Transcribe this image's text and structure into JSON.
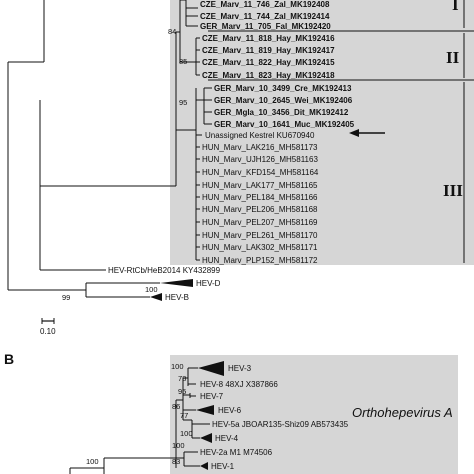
{
  "panel_b": {
    "letter": "B",
    "clade_name": "Orthohepevirus A",
    "leaves": [
      "HEV-3",
      "HEV-8 48XJ X387866",
      "HEV-7",
      "HEV-6",
      "HEV-5a JBOAR135-Shiz09 AB573435",
      "HEV-4",
      "HEV-2a M1 M74506",
      "HEV-1"
    ],
    "bootstrap": [
      "100",
      "78",
      "95",
      "86",
      "77",
      "100",
      "100",
      "83",
      "100"
    ]
  },
  "panel_a": {
    "group_labels": [
      "I",
      "II",
      "III"
    ],
    "scale_label": "0.10",
    "bootstrap": [
      "84",
      "85",
      "95",
      "100",
      "99"
    ],
    "leaves": [
      "CZE_Marv_11_746_Zal_MK192408",
      "CZE_Marv_11_744_Zal_MK192414",
      "GER_Marv_11_705_Fal_MK192420",
      "CZE_Marv_11_818_Hay_MK192416",
      "CZE_Marv_11_819_Hay_MK192417",
      "CZE_Marv_11_822_Hay_MK192415",
      "CZE_Marv_11_823_Hay_MK192418",
      "GER_Marv_10_3499_Cre_MK192413",
      "GER_Marv_10_2645_Wei_MK192406",
      "GER_Mgla_10_3456_Dit_MK192412",
      "GER_Marv_10_1641_Muc_MK192405",
      "Unassigned Kestrel KU670940",
      "HUN_Marv_LAK216_MH581173",
      "HUN_Marv_UJH126_MH581163",
      "HUN_Marv_KFD154_MH581164",
      "HUN_Marv_LAK177_MH581165",
      "HUN_Marv_PEL184_MH581166",
      "HUN_Marv_PEL206_MH581168",
      "HUN_Marv_PEL207_MH581169",
      "HUN_Marv_PEL261_MH581170",
      "HUN_Marv_LAK302_MH581171",
      "HUN_Marv_PLP152_MH581172",
      "HEV-RtCb/HeB2014 KY432899",
      "HEV-D",
      "HEV-B"
    ]
  }
}
